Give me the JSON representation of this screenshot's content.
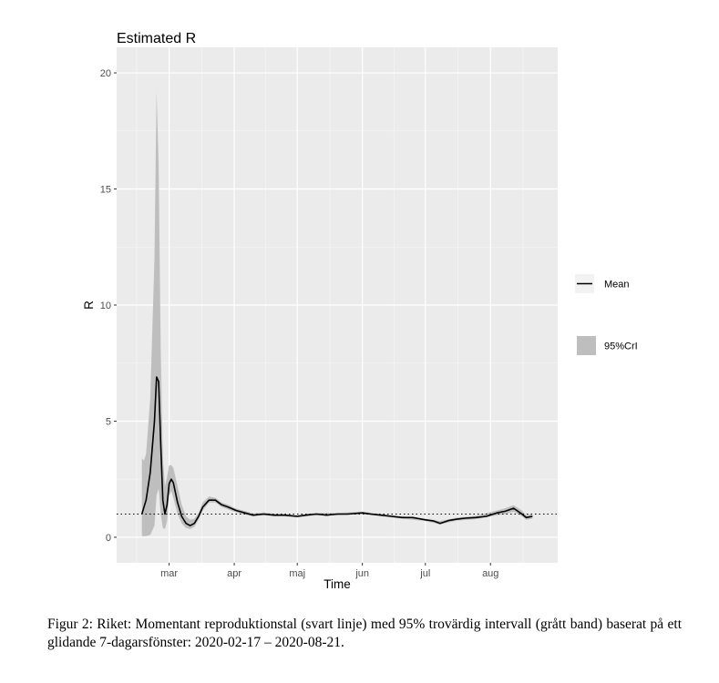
{
  "chart_data": {
    "type": "line",
    "title": "Estimated R",
    "xlabel": "Time",
    "ylabel": "R",
    "ylim": [
      -1.1,
      21.1
    ],
    "xlim": [
      "2020-02-05",
      "2020-09-02"
    ],
    "y_ticks": [
      0,
      5,
      10,
      15,
      20
    ],
    "y_tick_labels": [
      "0",
      "5",
      "10",
      "15",
      "20"
    ],
    "x_ticks": [
      "2020-03-01",
      "2020-04-01",
      "2020-05-01",
      "2020-06-01",
      "2020-07-01",
      "2020-08-01"
    ],
    "x_tick_labels": [
      "mar",
      "apr",
      "maj",
      "jun",
      "jul",
      "aug"
    ],
    "reference_line": {
      "y": 1,
      "style": "dotted"
    },
    "grid": true,
    "background": "#ebebeb",
    "legend_position": "right",
    "series": [
      {
        "name": "Mean",
        "kind": "line",
        "color": "#000000",
        "x": [
          "2020-02-17",
          "2020-02-19",
          "2020-02-21",
          "2020-02-23",
          "2020-02-24",
          "2020-02-25",
          "2020-02-26",
          "2020-02-27",
          "2020-02-28",
          "2020-02-29",
          "2020-03-01",
          "2020-03-02",
          "2020-03-03",
          "2020-03-05",
          "2020-03-07",
          "2020-03-09",
          "2020-03-11",
          "2020-03-13",
          "2020-03-15",
          "2020-03-17",
          "2020-03-20",
          "2020-03-23",
          "2020-03-26",
          "2020-03-29",
          "2020-04-02",
          "2020-04-06",
          "2020-04-10",
          "2020-04-15",
          "2020-04-20",
          "2020-04-25",
          "2020-05-01",
          "2020-05-05",
          "2020-05-10",
          "2020-05-15",
          "2020-05-20",
          "2020-05-25",
          "2020-06-01",
          "2020-06-05",
          "2020-06-10",
          "2020-06-15",
          "2020-06-20",
          "2020-06-25",
          "2020-07-01",
          "2020-07-05",
          "2020-07-08",
          "2020-07-12",
          "2020-07-16",
          "2020-07-20",
          "2020-07-25",
          "2020-07-30",
          "2020-08-04",
          "2020-08-08",
          "2020-08-12",
          "2020-08-16",
          "2020-08-18",
          "2020-08-21"
        ],
        "y": [
          1.0,
          1.6,
          2.8,
          5.0,
          6.9,
          6.7,
          4.0,
          1.6,
          1.0,
          1.4,
          2.3,
          2.5,
          2.35,
          1.5,
          0.9,
          0.6,
          0.5,
          0.6,
          0.9,
          1.3,
          1.6,
          1.6,
          1.4,
          1.3,
          1.15,
          1.05,
          0.95,
          1.0,
          0.95,
          0.95,
          0.9,
          0.95,
          1.0,
          0.95,
          1.0,
          1.0,
          1.05,
          1.0,
          0.95,
          0.9,
          0.85,
          0.85,
          0.75,
          0.7,
          0.6,
          0.72,
          0.78,
          0.82,
          0.85,
          0.9,
          1.05,
          1.12,
          1.25,
          1.0,
          0.85,
          0.9
        ]
      },
      {
        "name": "95%CrI",
        "kind": "band",
        "color": "#bebebe",
        "x": [
          "2020-02-17",
          "2020-02-18",
          "2020-02-19",
          "2020-02-21",
          "2020-02-23",
          "2020-02-24",
          "2020-02-25",
          "2020-02-26",
          "2020-02-27",
          "2020-02-28",
          "2020-02-29",
          "2020-03-01",
          "2020-03-02",
          "2020-03-03",
          "2020-03-05",
          "2020-03-07",
          "2020-03-09",
          "2020-03-11",
          "2020-03-13",
          "2020-03-15",
          "2020-03-17",
          "2020-03-20",
          "2020-03-23",
          "2020-03-26",
          "2020-03-29",
          "2020-04-02",
          "2020-04-06",
          "2020-04-10",
          "2020-04-15",
          "2020-04-20",
          "2020-04-25",
          "2020-05-01",
          "2020-05-10",
          "2020-05-20",
          "2020-06-01",
          "2020-06-10",
          "2020-06-20",
          "2020-07-01",
          "2020-07-08",
          "2020-07-16",
          "2020-07-25",
          "2020-08-04",
          "2020-08-08",
          "2020-08-12",
          "2020-08-16",
          "2020-08-18",
          "2020-08-21"
        ],
        "lower": [
          0.05,
          0.05,
          0.05,
          0.1,
          0.5,
          1.8,
          2.1,
          1.0,
          0.4,
          0.35,
          0.7,
          1.8,
          2.0,
          1.7,
          1.0,
          0.6,
          0.4,
          0.35,
          0.45,
          0.75,
          1.15,
          1.5,
          1.5,
          1.3,
          1.2,
          1.07,
          0.98,
          0.9,
          0.95,
          0.9,
          0.9,
          0.85,
          0.95,
          0.95,
          1.0,
          0.9,
          0.8,
          0.7,
          0.55,
          0.72,
          0.78,
          0.95,
          1.0,
          1.1,
          0.9,
          0.75,
          0.8
        ],
        "upper": [
          3.4,
          3.3,
          3.6,
          6.0,
          12.0,
          19.2,
          16.0,
          8.0,
          3.5,
          2.2,
          2.6,
          3.1,
          3.1,
          3.0,
          2.2,
          1.4,
          0.9,
          0.75,
          0.8,
          1.05,
          1.5,
          1.75,
          1.7,
          1.5,
          1.4,
          1.23,
          1.13,
          1.02,
          1.07,
          1.01,
          1.0,
          0.95,
          1.05,
          1.05,
          1.1,
          1.0,
          0.9,
          0.8,
          0.7,
          0.84,
          0.92,
          1.15,
          1.25,
          1.38,
          1.15,
          0.95,
          1.0
        ]
      }
    ],
    "legend": [
      {
        "label": "Mean",
        "kind": "line"
      },
      {
        "label": "95%CrI",
        "kind": "band"
      }
    ]
  },
  "caption": "Figur 2: Riket: Momentant reproduktionstal (svart linje) med 95% trovärdig intervall (grått band) baserat på ett glidande 7-dagarsfönster: 2020-02-17 – 2020-08-21."
}
